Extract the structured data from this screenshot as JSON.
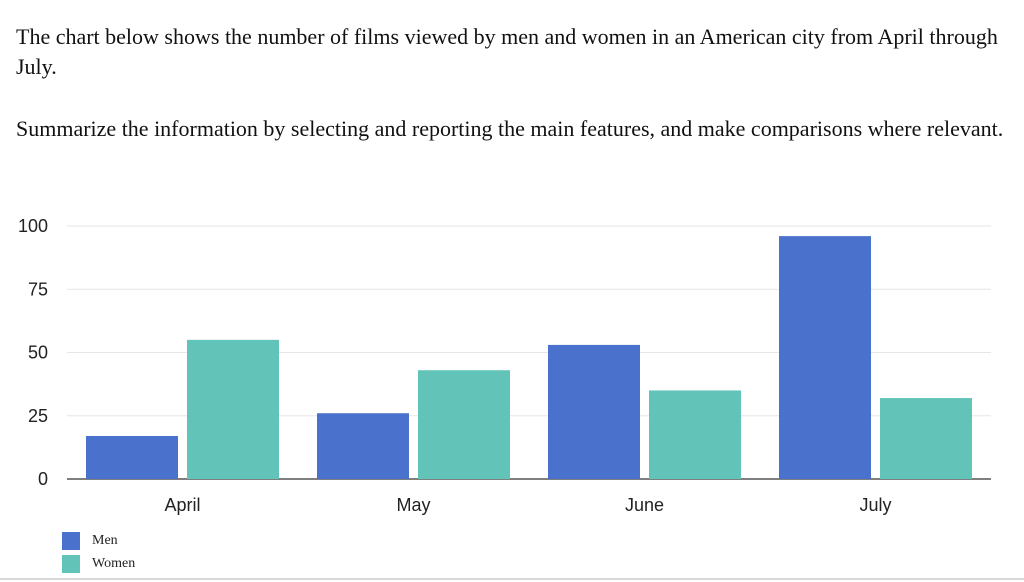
{
  "prompt": {
    "line1": "The chart below shows the number of films viewed by men and women in an American city from April through July.",
    "line2": "Summarize the information by selecting and reporting the main features, and make comparisons where relevant."
  },
  "chart_data": {
    "type": "bar",
    "title": "",
    "xlabel": "",
    "ylabel": "",
    "categories": [
      "April",
      "May",
      "June",
      "July"
    ],
    "series": [
      {
        "name": "Men",
        "values": [
          17,
          26,
          53,
          96
        ],
        "color": "#4a72cd"
      },
      {
        "name": "Women",
        "values": [
          55,
          43,
          35,
          32
        ],
        "color": "#62c4b8"
      }
    ],
    "ylim": [
      0,
      100
    ],
    "yticks": [
      0,
      25,
      50,
      75,
      100
    ],
    "grid": true,
    "legend": "bottom-left"
  }
}
